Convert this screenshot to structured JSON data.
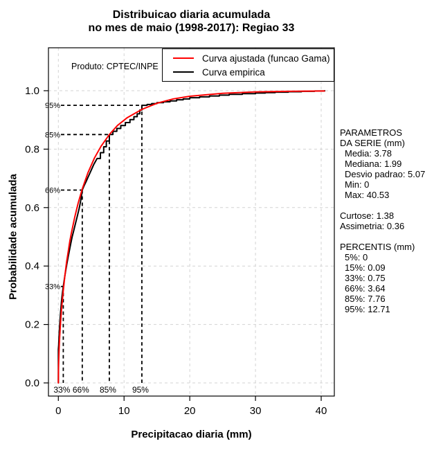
{
  "title": {
    "line1": "Distribuicao diaria acumulada",
    "line2": "no mes de maio (1998-2017): Regiao 33"
  },
  "product_label": "Produto: CPTEC/INPE",
  "axes": {
    "x_label": "Precipitacao diaria (mm)",
    "y_label": "Probabilidade acumulada",
    "x_ticks": [
      "0",
      "10",
      "20",
      "30",
      "40"
    ],
    "x_tick_values": [
      0,
      10,
      20,
      30,
      40
    ],
    "y_ticks": [
      "0.0",
      "0.2",
      "0.4",
      "0.6",
      "0.8",
      "1.0"
    ],
    "y_tick_values": [
      0,
      0.2,
      0.4,
      0.6,
      0.8,
      1.0
    ]
  },
  "legend": {
    "items": [
      {
        "label": "Curva ajustada (funcao Gama)",
        "color": "#ff0000"
      },
      {
        "label": "Curva empirica",
        "color": "#000000"
      }
    ]
  },
  "stats_panel": {
    "lines": [
      {
        "text": "PARAMETROS",
        "indent": 0
      },
      {
        "text": "DA SERIE (mm)",
        "indent": 0
      },
      {
        "text": "Media: 3.78",
        "indent": 1
      },
      {
        "text": "Mediana: 1.99",
        "indent": 1
      },
      {
        "text": "Desvio padrao: 5.07",
        "indent": 1
      },
      {
        "text": "Min: 0",
        "indent": 1
      },
      {
        "text": "Max: 40.53",
        "indent": 1
      },
      {
        "text": "",
        "indent": 0
      },
      {
        "text": "Curtose: 1.38",
        "indent": 0
      },
      {
        "text": "Assimetria: 0.36",
        "indent": 0
      },
      {
        "text": "",
        "indent": 0
      },
      {
        "text": "PERCENTIS (mm)",
        "indent": 0
      },
      {
        "text": "5%: 0",
        "indent": 1
      },
      {
        "text": "15%: 0.09",
        "indent": 1
      },
      {
        "text": "33%: 0.75",
        "indent": 1
      },
      {
        "text": "66%: 3.64",
        "indent": 1
      },
      {
        "text": "85%: 7.76",
        "indent": 1
      },
      {
        "text": "95%: 12.71",
        "indent": 1
      }
    ]
  },
  "colors": {
    "fitted_curve": "#ff0000",
    "empirical_curve": "#000000",
    "grid": "#d3d3d3",
    "percentile_dash": "#000000"
  },
  "chart_data": {
    "type": "line",
    "title": "Distribuicao diaria acumulada no mes de maio (1998-2017): Regiao 33",
    "xlabel": "Precipitacao diaria (mm)",
    "ylabel": "Probabilidade acumulada",
    "xlim": [
      0,
      40.53
    ],
    "ylim": [
      0,
      1.0
    ],
    "grid": true,
    "legend_position": "top-right",
    "series": [
      {
        "name": "Curva empirica",
        "color": "#000000",
        "style": "step",
        "points": [
          [
            0,
            0.115
          ],
          [
            0.05,
            0.13
          ],
          [
            0.09,
            0.15
          ],
          [
            0.13,
            0.17
          ],
          [
            0.18,
            0.19
          ],
          [
            0.24,
            0.21
          ],
          [
            0.3,
            0.23
          ],
          [
            0.37,
            0.25
          ],
          [
            0.45,
            0.272
          ],
          [
            0.55,
            0.295
          ],
          [
            0.65,
            0.313
          ],
          [
            0.75,
            0.33
          ],
          [
            0.88,
            0.35
          ],
          [
            1.0,
            0.368
          ],
          [
            1.15,
            0.388
          ],
          [
            1.3,
            0.408
          ],
          [
            1.5,
            0.432
          ],
          [
            1.7,
            0.455
          ],
          [
            1.9,
            0.478
          ],
          [
            2.1,
            0.5
          ],
          [
            2.35,
            0.522
          ],
          [
            2.6,
            0.545
          ],
          [
            2.9,
            0.572
          ],
          [
            3.2,
            0.6
          ],
          [
            3.45,
            0.63
          ],
          [
            3.64,
            0.66
          ],
          [
            3.9,
            0.674
          ],
          [
            4.2,
            0.688
          ],
          [
            4.6,
            0.708
          ],
          [
            5.0,
            0.728
          ],
          [
            5.4,
            0.748
          ],
          [
            5.9,
            0.768
          ],
          [
            6.4,
            0.788
          ],
          [
            6.9,
            0.808
          ],
          [
            7.3,
            0.828
          ],
          [
            7.76,
            0.85
          ],
          [
            8.3,
            0.861
          ],
          [
            8.9,
            0.871
          ],
          [
            9.5,
            0.881
          ],
          [
            10.2,
            0.891
          ],
          [
            10.9,
            0.901
          ],
          [
            11.5,
            0.911
          ],
          [
            12.0,
            0.921
          ],
          [
            12.4,
            0.934
          ],
          [
            12.71,
            0.95
          ],
          [
            13.5,
            0.953
          ],
          [
            14.2,
            0.956
          ],
          [
            15,
            0.959
          ],
          [
            16,
            0.962
          ],
          [
            17,
            0.965
          ],
          [
            18,
            0.969
          ],
          [
            19,
            0.972
          ],
          [
            20,
            0.976
          ],
          [
            21.5,
            0.979
          ],
          [
            23,
            0.982
          ],
          [
            24.5,
            0.985
          ],
          [
            26,
            0.9875
          ],
          [
            28,
            0.99
          ],
          [
            30,
            0.992
          ],
          [
            31.5,
            0.9935
          ],
          [
            33,
            0.995
          ],
          [
            35,
            0.9965
          ],
          [
            37,
            0.998
          ],
          [
            39,
            0.999
          ],
          [
            40.53,
            1.0
          ]
        ]
      },
      {
        "name": "Curva ajustada (funcao Gama)",
        "color": "#ff0000",
        "style": "smooth",
        "points": [
          [
            0,
            0
          ],
          [
            0.025,
            0.05
          ],
          [
            0.05,
            0.073
          ],
          [
            0.1,
            0.107
          ],
          [
            0.15,
            0.134
          ],
          [
            0.2,
            0.157
          ],
          [
            0.275,
            0.186
          ],
          [
            0.35,
            0.212
          ],
          [
            0.5,
            0.257
          ],
          [
            0.75,
            0.316
          ],
          [
            1.0,
            0.368
          ],
          [
            1.25,
            0.413
          ],
          [
            1.5,
            0.449
          ],
          [
            1.75,
            0.486
          ],
          [
            2.0,
            0.515
          ],
          [
            2.5,
            0.568
          ],
          [
            3.0,
            0.614
          ],
          [
            3.64,
            0.664
          ],
          [
            4.5,
            0.719
          ],
          [
            5.5,
            0.77
          ],
          [
            6.5,
            0.81
          ],
          [
            7.76,
            0.85
          ],
          [
            9.0,
            0.881
          ],
          [
            10.5,
            0.908
          ],
          [
            12.71,
            0.936
          ],
          [
            15,
            0.957
          ],
          [
            17.5,
            0.972
          ],
          [
            20,
            0.981
          ],
          [
            25,
            0.991
          ],
          [
            30,
            0.996
          ],
          [
            35,
            0.998
          ],
          [
            40.5,
            0.999
          ]
        ]
      }
    ],
    "percentile_markers": [
      {
        "label": "33%",
        "x": 0.75,
        "p": 0.33
      },
      {
        "label": "66%",
        "x": 3.64,
        "p": 0.66
      },
      {
        "label": "85%",
        "x": 7.76,
        "p": 0.85
      },
      {
        "label": "95%",
        "x": 12.71,
        "p": 0.95
      }
    ]
  }
}
